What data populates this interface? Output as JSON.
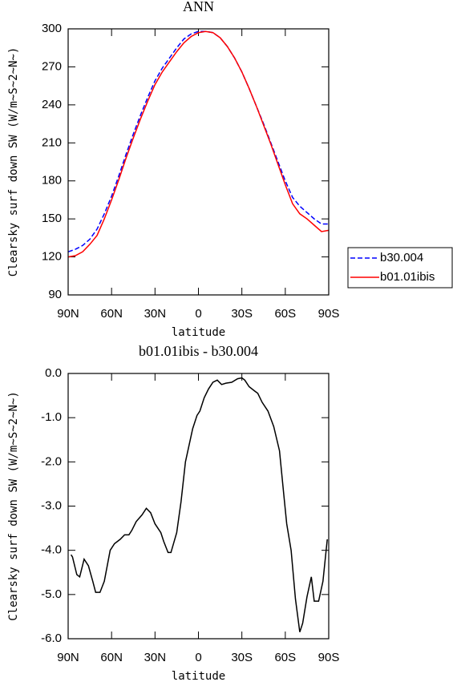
{
  "chart_data": [
    {
      "type": "line",
      "title": "ANN",
      "xlabel": "latitude",
      "ylabel": "Clearsky surf down SW (W/m~S~2~N~)",
      "x": [
        90,
        85,
        80,
        75,
        70,
        65,
        60,
        55,
        50,
        45,
        40,
        35,
        30,
        25,
        20,
        15,
        10,
        5,
        0,
        -5,
        -10,
        -15,
        -20,
        -25,
        -30,
        -35,
        -40,
        -45,
        -50,
        -55,
        -60,
        -65,
        -70,
        -75,
        -80,
        -85,
        -90
      ],
      "series": [
        {
          "name": "b30.004",
          "color": "#0000ff",
          "linestyle": "dashed",
          "values": [
            124,
            126,
            129,
            134,
            142,
            154,
            168,
            184,
            201,
            217,
            232,
            246,
            259,
            269,
            277,
            285,
            292,
            296,
            298,
            298,
            297,
            293,
            286,
            277,
            266,
            253,
            239,
            225,
            210,
            195,
            180,
            167,
            160,
            155,
            150,
            146,
            146
          ]
        },
        {
          "name": "b01.01ibis",
          "color": "#ff0000",
          "linestyle": "solid",
          "values": [
            120,
            121,
            124,
            130,
            137,
            150,
            165,
            181,
            198,
            214,
            229,
            243,
            256,
            266,
            274,
            282,
            289,
            294,
            297,
            298,
            297,
            293,
            286,
            277,
            266,
            253,
            239,
            224,
            209,
            193,
            177,
            162,
            154,
            150,
            145,
            140,
            141
          ]
        }
      ],
      "xlim": [
        90,
        -90
      ],
      "xticks": [
        {
          "value": 90,
          "label": "90N"
        },
        {
          "value": 60,
          "label": "60N"
        },
        {
          "value": 30,
          "label": "30N"
        },
        0,
        {
          "value": -30,
          "label": "30S"
        },
        {
          "value": -60,
          "label": "60S"
        },
        {
          "value": -90,
          "label": "90S"
        }
      ],
      "ylim": [
        90,
        300
      ],
      "yticks": [
        90,
        120,
        150,
        180,
        210,
        240,
        270,
        300
      ],
      "legend": "outside-right"
    },
    {
      "type": "line",
      "title": "b01.01ibis - b30.004",
      "xlabel": "latitude",
      "ylabel": "Clearsky surf down SW (W/m~S~2~N~)",
      "x": [
        88,
        87,
        84,
        82,
        79,
        76,
        73,
        71,
        68,
        65,
        61,
        58,
        54,
        51,
        48,
        46,
        43,
        39,
        36,
        33,
        30,
        26,
        24,
        21,
        19,
        15,
        12,
        9,
        4,
        1,
        -1,
        -4,
        -7,
        -10,
        -13,
        -16,
        -19,
        -23,
        -27,
        -30,
        -32,
        -35,
        -39,
        -41,
        -44,
        -48,
        -52,
        -56,
        -59,
        -61,
        -64,
        -67,
        -70,
        -72,
        -75,
        -78,
        -80,
        -83,
        -86,
        -89
      ],
      "values": [
        -4.1,
        -4.15,
        -4.55,
        -4.6,
        -4.2,
        -4.35,
        -4.7,
        -4.95,
        -4.95,
        -4.7,
        -4.0,
        -3.85,
        -3.75,
        -3.65,
        -3.65,
        -3.55,
        -3.35,
        -3.2,
        -3.05,
        -3.15,
        -3.4,
        -3.6,
        -3.8,
        -4.05,
        -4.05,
        -3.6,
        -2.9,
        -2.0,
        -1.25,
        -0.95,
        -0.85,
        -0.55,
        -0.35,
        -0.2,
        -0.15,
        -0.25,
        -0.22,
        -0.2,
        -0.12,
        -0.1,
        -0.15,
        -0.3,
        -0.4,
        -0.45,
        -0.65,
        -0.85,
        -1.2,
        -1.75,
        -2.75,
        -3.4,
        -4.0,
        -5.1,
        -5.85,
        -5.65,
        -5.05,
        -4.6,
        -5.15,
        -5.15,
        -4.7,
        -3.75
      ],
      "color": "#000000",
      "xlim": [
        90,
        -90
      ],
      "xticks": [
        {
          "value": 90,
          "label": "90N"
        },
        {
          "value": 60,
          "label": "60N"
        },
        {
          "value": 30,
          "label": "30N"
        },
        0,
        {
          "value": -30,
          "label": "30S"
        },
        {
          "value": -60,
          "label": "60S"
        },
        {
          "value": -90,
          "label": "90S"
        }
      ],
      "ylim": [
        -6,
        0
      ],
      "yticks": [
        {
          "value": -6,
          "label": "-6.0"
        },
        {
          "value": -5,
          "label": "-5.0"
        },
        {
          "value": -4,
          "label": "-4.0"
        },
        {
          "value": -3,
          "label": "-3.0"
        },
        {
          "value": -2,
          "label": "-2.0"
        },
        {
          "value": -1,
          "label": "-1.0"
        },
        {
          "value": 0,
          "label": "0.0"
        }
      ]
    }
  ]
}
